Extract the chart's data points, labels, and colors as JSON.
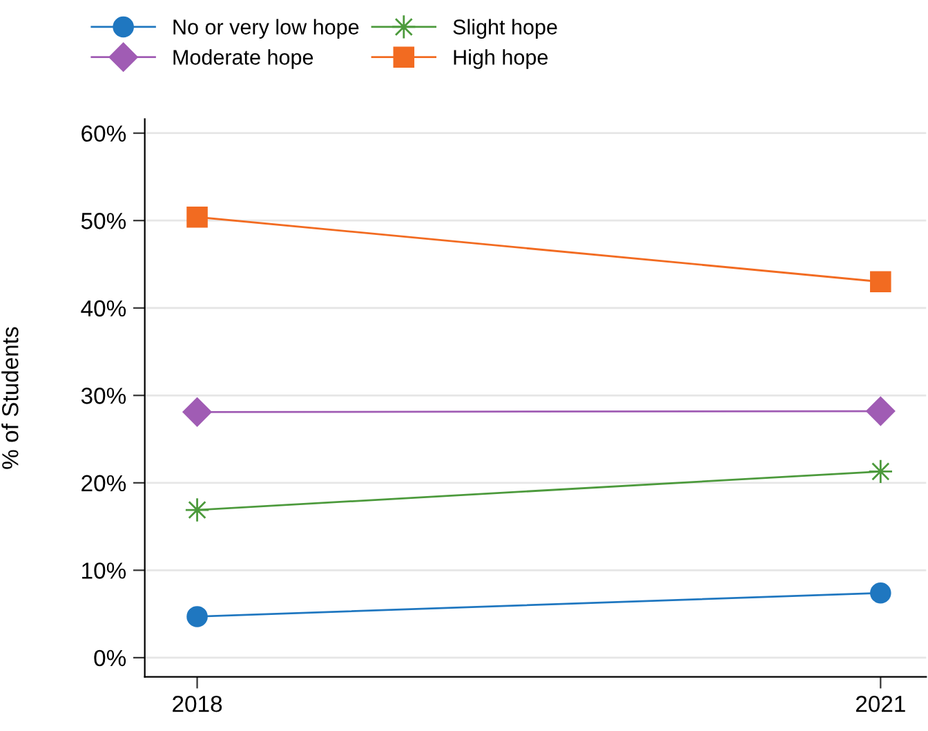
{
  "chart_data": {
    "type": "line",
    "ylabel": "% of Students",
    "x": [
      2018,
      2021
    ],
    "xlim": [
      2017.77,
      2021.2
    ],
    "xticks": [
      2018,
      2021
    ],
    "ylim": [
      -2.2,
      61.6
    ],
    "yticks": [
      {
        "value": 0,
        "label": "0%"
      },
      {
        "value": 10,
        "label": "10%"
      },
      {
        "value": 20,
        "label": "20%"
      },
      {
        "value": 30,
        "label": "30%"
      },
      {
        "value": 40,
        "label": "40%"
      },
      {
        "value": 50,
        "label": "50%"
      },
      {
        "value": 60,
        "label": "60%"
      }
    ],
    "grid": "y",
    "legend": "top",
    "line_style": "solid",
    "series": [
      {
        "name": "No or very low hope",
        "color": "#1f77c0",
        "marker": "circle",
        "values": [
          4.7,
          7.4
        ]
      },
      {
        "name": "Slight hope",
        "color": "#4c9a3c",
        "marker": "star",
        "values": [
          16.9,
          21.3
        ]
      },
      {
        "name": "Moderate hope",
        "color": "#a05cb4",
        "marker": "diamond",
        "values": [
          28.1,
          28.2
        ]
      },
      {
        "name": "High hope",
        "color": "#f26b21",
        "marker": "square",
        "values": [
          50.4,
          43.0
        ]
      }
    ]
  }
}
